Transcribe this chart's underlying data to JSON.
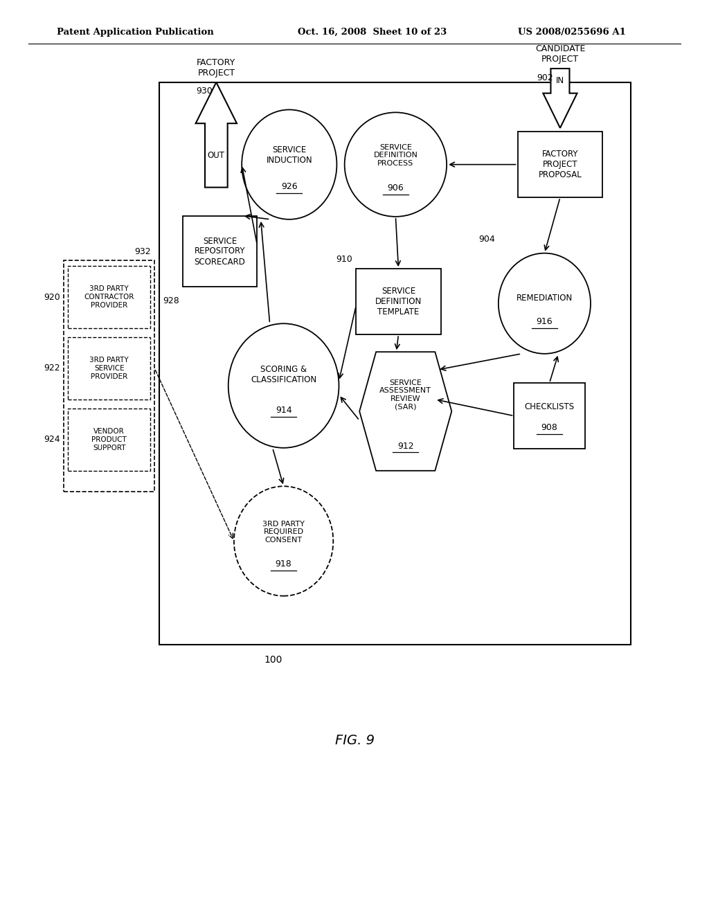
{
  "bg_color": "#ffffff",
  "header_line1": "Patent Application Publication",
  "header_line2": "Oct. 16, 2008  Sheet 10 of 23",
  "header_line3": "US 2008/0255696 A1",
  "fig_label": "FIG. 9",
  "diagram_label": "100"
}
